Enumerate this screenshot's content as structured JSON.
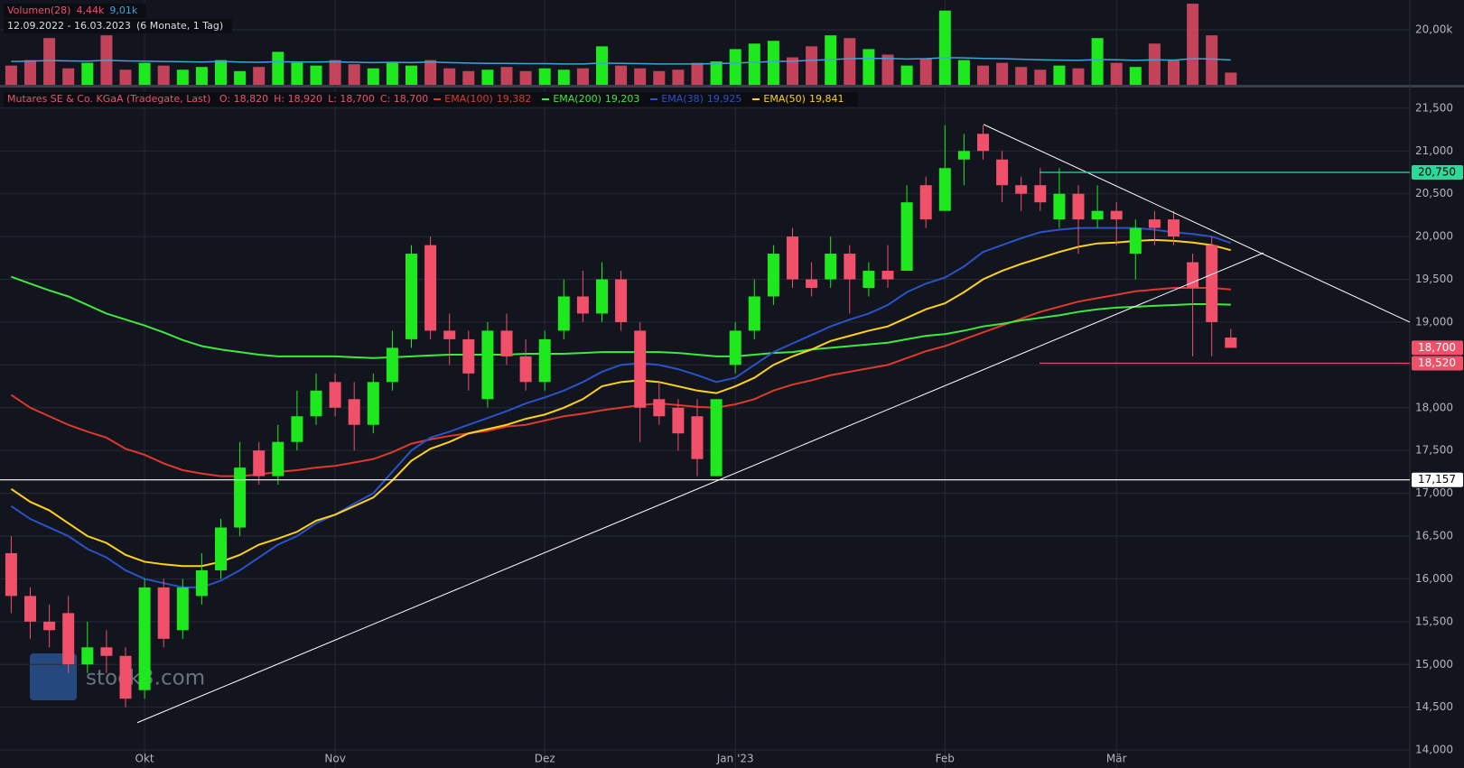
{
  "chart_data": {
    "type": "candlestick",
    "title": "Mutares SE & Co. KGaA (Tradegate, Last)",
    "ohlc_labels": [
      "O: 18,820",
      "H: 18,920",
      "L: 18,700",
      "C: 18,700"
    ],
    "date_range": "12.09.2022 - 16.03.2023",
    "period": "(6 Monate, 1 Tag)",
    "watermark": "stock3.com",
    "up_color": "#1ee81e",
    "down_color": "#f0506a",
    "categories": [
      null,
      null,
      null,
      null,
      null,
      null,
      null,
      "Okt",
      null,
      null,
      null,
      null,
      null,
      null,
      null,
      null,
      null,
      "Nov",
      null,
      null,
      null,
      null,
      null,
      null,
      null,
      null,
      null,
      null,
      "Dez",
      null,
      null,
      null,
      null,
      null,
      null,
      null,
      null,
      null,
      "Jan '23",
      null,
      null,
      null,
      null,
      null,
      null,
      null,
      null,
      null,
      null,
      "Feb",
      null,
      null,
      null,
      null,
      null,
      null,
      null,
      null,
      "Mär",
      null,
      null,
      null,
      null,
      null,
      null
    ],
    "candles": [
      [
        16.3,
        16.5,
        15.6,
        15.8
      ],
      [
        15.8,
        15.9,
        15.3,
        15.5
      ],
      [
        15.5,
        15.7,
        15.2,
        15.4
      ],
      [
        15.6,
        15.8,
        14.9,
        15.0
      ],
      [
        15.0,
        15.5,
        14.9,
        15.2
      ],
      [
        15.2,
        15.4,
        14.9,
        15.1
      ],
      [
        15.1,
        15.2,
        14.5,
        14.6
      ],
      [
        14.7,
        16.0,
        14.6,
        15.9
      ],
      [
        15.9,
        16.0,
        15.2,
        15.3
      ],
      [
        15.4,
        16.0,
        15.3,
        15.9
      ],
      [
        15.8,
        16.3,
        15.7,
        16.1
      ],
      [
        16.1,
        16.7,
        16.0,
        16.6
      ],
      [
        16.6,
        17.6,
        16.5,
        17.3
      ],
      [
        17.5,
        17.6,
        17.1,
        17.2
      ],
      [
        17.2,
        17.8,
        17.1,
        17.6
      ],
      [
        17.6,
        18.2,
        17.5,
        17.9
      ],
      [
        17.9,
        18.4,
        17.8,
        18.2
      ],
      [
        18.3,
        18.4,
        17.9,
        18.0
      ],
      [
        18.1,
        18.3,
        17.5,
        17.8
      ],
      [
        17.8,
        18.4,
        17.7,
        18.3
      ],
      [
        18.3,
        18.9,
        18.2,
        18.7
      ],
      [
        18.8,
        19.9,
        18.7,
        19.8
      ],
      [
        19.9,
        20.0,
        18.8,
        18.9
      ],
      [
        18.9,
        19.1,
        18.5,
        18.8
      ],
      [
        18.8,
        18.9,
        18.2,
        18.4
      ],
      [
        18.1,
        19.0,
        18.0,
        18.9
      ],
      [
        18.9,
        19.1,
        18.5,
        18.6
      ],
      [
        18.6,
        18.8,
        18.2,
        18.3
      ],
      [
        18.3,
        18.9,
        18.2,
        18.8
      ],
      [
        18.9,
        19.5,
        18.8,
        19.3
      ],
      [
        19.3,
        19.6,
        19.0,
        19.1
      ],
      [
        19.1,
        19.7,
        19.0,
        19.5
      ],
      [
        19.5,
        19.6,
        18.9,
        19.0
      ],
      [
        18.9,
        19.0,
        17.6,
        18.0
      ],
      [
        18.1,
        18.3,
        17.8,
        17.9
      ],
      [
        18.0,
        18.1,
        17.5,
        17.7
      ],
      [
        17.9,
        18.1,
        17.2,
        17.4
      ],
      [
        17.2,
        18.1,
        17.2,
        18.1
      ],
      [
        18.5,
        19.0,
        18.4,
        18.9
      ],
      [
        18.9,
        19.5,
        18.8,
        19.3
      ],
      [
        19.3,
        19.9,
        19.2,
        19.8
      ],
      [
        20.0,
        20.1,
        19.4,
        19.5
      ],
      [
        19.5,
        19.7,
        19.3,
        19.4
      ],
      [
        19.5,
        20.0,
        19.4,
        19.8
      ],
      [
        19.8,
        19.9,
        19.1,
        19.5
      ],
      [
        19.4,
        19.7,
        19.3,
        19.6
      ],
      [
        19.6,
        19.9,
        19.4,
        19.5
      ],
      [
        19.6,
        20.6,
        19.6,
        20.4
      ],
      [
        20.6,
        20.7,
        20.1,
        20.2
      ],
      [
        20.3,
        21.3,
        20.3,
        20.8
      ],
      [
        20.9,
        21.2,
        20.6,
        21.0
      ],
      [
        21.2,
        21.3,
        20.9,
        21.0
      ],
      [
        20.9,
        21.0,
        20.4,
        20.6
      ],
      [
        20.6,
        20.7,
        20.3,
        20.5
      ],
      [
        20.6,
        20.8,
        20.3,
        20.4
      ],
      [
        20.2,
        20.8,
        20.1,
        20.5
      ],
      [
        20.5,
        20.6,
        19.8,
        20.2
      ],
      [
        20.2,
        20.6,
        20.1,
        20.3
      ],
      [
        20.3,
        20.4,
        19.9,
        20.2
      ],
      [
        19.8,
        20.2,
        19.5,
        20.1
      ],
      [
        20.2,
        20.3,
        19.9,
        20.1
      ],
      [
        20.2,
        20.3,
        19.9,
        20.0
      ],
      [
        19.7,
        19.8,
        18.6,
        19.4
      ],
      [
        19.9,
        20.0,
        18.6,
        19.0
      ],
      [
        18.82,
        18.92,
        18.7,
        18.7
      ]
    ],
    "ylim": [
      13.79,
      21.72
    ],
    "yticks": [
      {
        "value": 14,
        "label": "14,000"
      },
      {
        "value": 14.5,
        "label": "14,500"
      },
      {
        "value": 15,
        "label": "15,000"
      },
      {
        "value": 15.5,
        "label": "15,500"
      },
      {
        "value": 16,
        "label": "16,000"
      },
      {
        "value": 16.5,
        "label": "16,500"
      },
      {
        "value": 17,
        "label": "17,000"
      },
      {
        "value": 17.5,
        "label": "17,500"
      },
      {
        "value": 18,
        "label": "18,000"
      },
      {
        "value": 18.5,
        "label": "18,500"
      },
      {
        "value": 19,
        "label": "19,000"
      },
      {
        "value": 19.5,
        "label": "19,500"
      },
      {
        "value": 20,
        "label": "20,000"
      },
      {
        "value": 20.5,
        "label": "20,500"
      },
      {
        "value": 21,
        "label": "21,000"
      },
      {
        "value": 21.5,
        "label": "21,500"
      }
    ],
    "grid": true,
    "series": [
      {
        "name": "EMA(100)",
        "color": "#e0392b",
        "last_label": "19,382",
        "values": [
          18.15,
          18.0,
          17.9,
          17.8,
          17.72,
          17.65,
          17.52,
          17.45,
          17.35,
          17.27,
          17.23,
          17.2,
          17.2,
          17.22,
          17.25,
          17.27,
          17.3,
          17.32,
          17.36,
          17.4,
          17.48,
          17.58,
          17.63,
          17.67,
          17.7,
          17.73,
          17.78,
          17.8,
          17.85,
          17.9,
          17.93,
          17.97,
          18.0,
          18.03,
          18.05,
          18.03,
          18.01,
          18.0,
          18.04,
          18.1,
          18.2,
          18.27,
          18.32,
          18.38,
          18.42,
          18.46,
          18.5,
          18.58,
          18.66,
          18.72,
          18.8,
          18.88,
          18.96,
          19.04,
          19.12,
          19.18,
          19.24,
          19.28,
          19.32,
          19.36,
          19.38,
          19.4,
          19.4,
          19.4,
          19.382
        ]
      },
      {
        "name": "EMA(200)",
        "color": "#3ee83e",
        "last_label": "19,203",
        "values": [
          19.53,
          19.45,
          19.37,
          19.3,
          19.2,
          19.1,
          19.03,
          18.96,
          18.88,
          18.79,
          18.72,
          18.68,
          18.65,
          18.62,
          18.6,
          18.6,
          18.6,
          18.6,
          18.59,
          18.58,
          18.59,
          18.6,
          18.61,
          18.62,
          18.62,
          18.62,
          18.62,
          18.63,
          18.63,
          18.63,
          18.64,
          18.65,
          18.65,
          18.65,
          18.65,
          18.64,
          18.62,
          18.6,
          18.6,
          18.62,
          18.64,
          18.65,
          18.68,
          18.7,
          18.72,
          18.74,
          18.76,
          18.8,
          18.84,
          18.86,
          18.9,
          18.95,
          18.98,
          19.02,
          19.05,
          19.08,
          19.12,
          19.15,
          19.17,
          19.18,
          19.19,
          19.2,
          19.21,
          19.21,
          19.203
        ]
      },
      {
        "name": "EMA(38)",
        "color": "#2a52c9",
        "last_label": "19,925",
        "values": [
          16.85,
          16.7,
          16.6,
          16.5,
          16.35,
          16.25,
          16.1,
          16.0,
          15.95,
          15.9,
          15.9,
          15.98,
          16.1,
          16.25,
          16.4,
          16.5,
          16.65,
          16.75,
          16.88,
          17.0,
          17.25,
          17.5,
          17.65,
          17.72,
          17.8,
          17.88,
          17.96,
          18.05,
          18.12,
          18.2,
          18.3,
          18.42,
          18.5,
          18.52,
          18.5,
          18.45,
          18.38,
          18.3,
          18.35,
          18.5,
          18.65,
          18.75,
          18.85,
          18.95,
          19.03,
          19.1,
          19.2,
          19.35,
          19.45,
          19.52,
          19.65,
          19.82,
          19.9,
          19.98,
          20.05,
          20.08,
          20.1,
          20.1,
          20.1,
          20.1,
          20.08,
          20.05,
          20.03,
          20.0,
          19.925
        ]
      },
      {
        "name": "EMA(50)",
        "color": "#ffd11a",
        "last_label": "19,841",
        "values": [
          17.05,
          16.9,
          16.8,
          16.65,
          16.5,
          16.42,
          16.28,
          16.2,
          16.17,
          16.15,
          16.15,
          16.2,
          16.28,
          16.4,
          16.47,
          16.55,
          16.68,
          16.75,
          16.85,
          16.95,
          17.15,
          17.38,
          17.52,
          17.6,
          17.7,
          17.75,
          17.8,
          17.87,
          17.92,
          18.0,
          18.1,
          18.25,
          18.3,
          18.32,
          18.3,
          18.25,
          18.2,
          18.17,
          18.25,
          18.35,
          18.5,
          18.6,
          18.68,
          18.78,
          18.84,
          18.9,
          18.95,
          19.05,
          19.15,
          19.22,
          19.35,
          19.5,
          19.6,
          19.68,
          19.75,
          19.82,
          19.88,
          19.92,
          19.93,
          19.95,
          19.96,
          19.95,
          19.93,
          19.9,
          19.841
        ]
      }
    ],
    "levels": [
      {
        "value": 20.75,
        "label": "20,750",
        "color": "#2bd99b"
      },
      {
        "value": 18.52,
        "label": "18,520",
        "color": "#f0506a"
      },
      {
        "value": 17.157,
        "label": "17,157",
        "color": "#ffffff"
      }
    ],
    "last_price": {
      "value": 18.7,
      "label": "18,700",
      "color": "#f0506a"
    },
    "trendlines": [
      {
        "from": 14.32,
        "to": 19.81,
        "color": "#ffffff"
      },
      {
        "from": 21.31,
        "to": 19.0,
        "color": "#ffffff"
      }
    ],
    "volume": {
      "name": "Volumen(28)",
      "value_label": "4,44k",
      "ma_label": "9,01k",
      "ma_color": "#3fa3d9",
      "values": [
        7000,
        9000,
        17000,
        6000,
        8000,
        18000,
        5500,
        8000,
        7000,
        5500,
        6500,
        9000,
        5000,
        6500,
        12000,
        8000,
        7000,
        9000,
        7500,
        6000,
        8000,
        7000,
        9000,
        6000,
        5000,
        5500,
        6500,
        5000,
        6000,
        5500,
        6000,
        14000,
        7000,
        6000,
        5000,
        5500,
        8000,
        8500,
        13000,
        15000,
        16000,
        10000,
        14000,
        18000,
        17000,
        13000,
        11000,
        7000,
        9500,
        27000,
        9000,
        7000,
        8000,
        6500,
        5500,
        7000,
        6000,
        17000,
        8000,
        6500,
        15000,
        9000,
        29500,
        18000,
        4440
      ],
      "ma_values": [
        8500,
        8600,
        8800,
        8700,
        8600,
        8900,
        8700,
        8600,
        8500,
        8400,
        8300,
        8500,
        8300,
        8200,
        8400,
        8300,
        8300,
        8400,
        8200,
        8100,
        8200,
        8100,
        8300,
        8100,
        7900,
        7800,
        7800,
        7700,
        7700,
        7600,
        7600,
        7900,
        7800,
        7700,
        7600,
        7600,
        7600,
        7700,
        7900,
        8200,
        8500,
        8600,
        8900,
        9200,
        9500,
        9600,
        9600,
        9400,
        9500,
        9900,
        9800,
        9600,
        9500,
        9300,
        9100,
        9000,
        8900,
        9200,
        9100,
        8900,
        9100,
        9000,
        9500,
        9400,
        9010
      ],
      "ylim": [
        0,
        30850
      ],
      "yticks": [
        {
          "value": 20000,
          "label": "20,00k"
        }
      ]
    }
  }
}
